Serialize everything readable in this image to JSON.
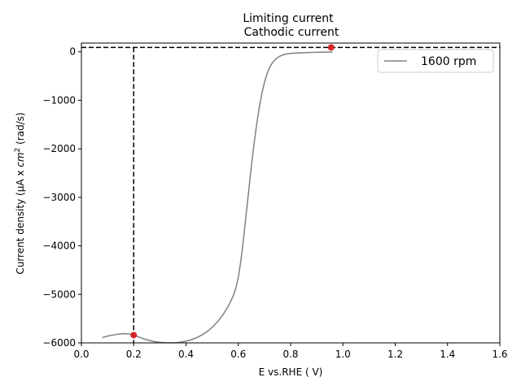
{
  "chart_data": {
    "type": "line",
    "title": "Limiting current",
    "subtitle": "Cathodic current",
    "xlabel": "E vs.RHE ( V)",
    "ylabel_prefix": "Current density (μA x  ",
    "ylabel_unit": "cm",
    "ylabel_sup": "2",
    "ylabel_suffix": " (rad/s)",
    "xlim": [
      0.0,
      1.6
    ],
    "ylim": [
      -6000,
      180
    ],
    "xticks": [
      0.0,
      0.2,
      0.4,
      0.6,
      0.8,
      1.0,
      1.2,
      1.4,
      1.6
    ],
    "xtick_labels": [
      "0.0",
      "0.2",
      "0.4",
      "0.6",
      "0.8",
      "1.0",
      "1.2",
      "1.4",
      "1.6"
    ],
    "yticks": [
      0,
      -1000,
      -2000,
      -3000,
      -4000,
      -5000,
      -6000
    ],
    "ytick_labels": [
      "0",
      "−1000",
      "−2000",
      "−3000",
      "−4000",
      "−5000",
      "−6000"
    ],
    "grid": false,
    "legend_position": "top-right",
    "series": [
      {
        "name": "1600 rpm",
        "color": "#808080",
        "x": [
          0.08,
          0.1,
          0.12,
          0.14,
          0.16,
          0.18,
          0.2,
          0.22,
          0.24,
          0.26,
          0.28,
          0.3,
          0.32,
          0.34,
          0.36,
          0.38,
          0.4,
          0.42,
          0.44,
          0.46,
          0.48,
          0.5,
          0.52,
          0.54,
          0.56,
          0.58,
          0.59,
          0.6,
          0.61,
          0.62,
          0.63,
          0.64,
          0.65,
          0.66,
          0.67,
          0.68,
          0.69,
          0.7,
          0.71,
          0.72,
          0.73,
          0.74,
          0.75,
          0.76,
          0.77,
          0.78,
          0.79,
          0.8,
          0.82,
          0.84,
          0.86,
          0.88,
          0.9,
          0.92,
          0.94,
          0.96
        ],
        "y": [
          -5890,
          -5860,
          -5840,
          -5820,
          -5810,
          -5815,
          -5840,
          -5880,
          -5920,
          -5950,
          -5975,
          -5990,
          -5995,
          -5998,
          -5995,
          -5985,
          -5965,
          -5935,
          -5895,
          -5840,
          -5770,
          -5680,
          -5570,
          -5430,
          -5260,
          -5040,
          -4880,
          -4650,
          -4300,
          -3850,
          -3350,
          -2850,
          -2350,
          -1900,
          -1500,
          -1150,
          -860,
          -630,
          -450,
          -320,
          -230,
          -165,
          -120,
          -88,
          -65,
          -50,
          -40,
          -33,
          -25,
          -20,
          -16,
          -13,
          -10,
          -8,
          -6,
          -5
        ]
      }
    ],
    "annotations": {
      "horizontal_line_y": 90,
      "vertical_line_x": 0.2,
      "markers": [
        {
          "x": 0.2,
          "y": -5840
        },
        {
          "x": 0.955,
          "y": 90
        }
      ],
      "line_style": "dashed",
      "line_color": "#000000",
      "marker_color": "#d62728"
    }
  }
}
